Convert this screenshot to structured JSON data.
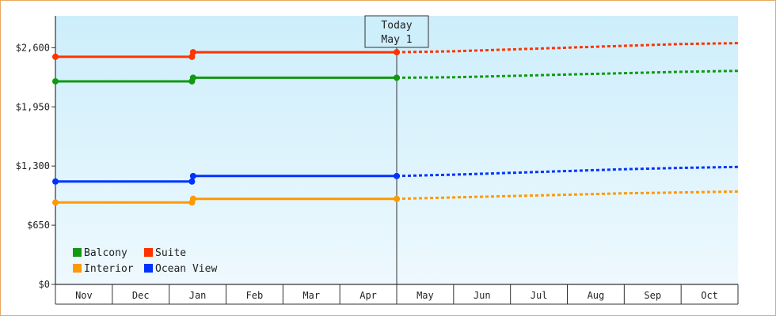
{
  "chart_data": {
    "type": "line",
    "categories": [
      "Nov",
      "Dec",
      "Jan",
      "Feb",
      "Mar",
      "Apr",
      "May",
      "Jun",
      "Jul",
      "Aug",
      "Sep",
      "Oct"
    ],
    "ylim": [
      0,
      2950
    ],
    "yticks": [
      0,
      650,
      1300,
      1950,
      2600
    ],
    "ytick_labels": [
      "$0",
      "$650",
      "$1,300",
      "$1,950",
      "$2,600"
    ],
    "today_marker": {
      "line1": "Today",
      "line2": "May 1",
      "at_month": 6
    },
    "grid": false,
    "legend_position": "bottom-left",
    "series": [
      {
        "name": "Balcony",
        "color": "#119911",
        "actual": [
          [
            0,
            2230
          ],
          [
            2.4,
            2230
          ],
          [
            2.42,
            2270
          ],
          [
            6,
            2270
          ]
        ],
        "forecast": [
          [
            6,
            2270
          ],
          [
            7,
            2275
          ],
          [
            8,
            2290
          ],
          [
            9,
            2305
          ],
          [
            10,
            2320
          ],
          [
            11,
            2335
          ],
          [
            12,
            2345
          ]
        ]
      },
      {
        "name": "Suite",
        "color": "#ff3300",
        "actual": [
          [
            0,
            2500
          ],
          [
            2.4,
            2500
          ],
          [
            2.42,
            2550
          ],
          [
            6,
            2550
          ]
        ],
        "forecast": [
          [
            6,
            2550
          ],
          [
            7,
            2560
          ],
          [
            8,
            2580
          ],
          [
            9,
            2600
          ],
          [
            10,
            2620
          ],
          [
            11,
            2640
          ],
          [
            12,
            2650
          ]
        ]
      },
      {
        "name": "Interior",
        "color": "#ff9900",
        "actual": [
          [
            0,
            900
          ],
          [
            2.4,
            900
          ],
          [
            2.42,
            940
          ],
          [
            6,
            940
          ]
        ],
        "forecast": [
          [
            6,
            940
          ],
          [
            7,
            955
          ],
          [
            8,
            970
          ],
          [
            9,
            985
          ],
          [
            10,
            1000
          ],
          [
            11,
            1010
          ],
          [
            12,
            1020
          ]
        ]
      },
      {
        "name": "Ocean View",
        "color": "#0033ff",
        "actual": [
          [
            0,
            1130
          ],
          [
            2.4,
            1130
          ],
          [
            2.42,
            1190
          ],
          [
            6,
            1190
          ]
        ],
        "forecast": [
          [
            6,
            1190
          ],
          [
            7,
            1205
          ],
          [
            8,
            1225
          ],
          [
            9,
            1245
          ],
          [
            10,
            1265
          ],
          [
            11,
            1280
          ],
          [
            12,
            1290
          ]
        ]
      }
    ]
  }
}
